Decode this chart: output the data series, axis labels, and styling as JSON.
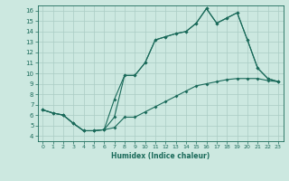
{
  "xlabel": "Humidex (Indice chaleur)",
  "bg_color": "#cce8e0",
  "grid_color": "#aaccc4",
  "line_color": "#1a6a5a",
  "xlim": [
    -0.5,
    23.5
  ],
  "ylim": [
    3.5,
    16.5
  ],
  "xticks": [
    0,
    1,
    2,
    3,
    4,
    5,
    6,
    7,
    8,
    9,
    10,
    11,
    12,
    13,
    14,
    15,
    16,
    17,
    18,
    19,
    20,
    21,
    22,
    23
  ],
  "yticks": [
    4,
    5,
    6,
    7,
    8,
    9,
    10,
    11,
    12,
    13,
    14,
    15,
    16
  ],
  "line1_x": [
    0,
    1,
    2,
    3,
    4,
    5,
    6,
    7,
    8,
    9,
    10,
    11,
    12,
    13,
    14,
    15,
    16,
    17,
    18,
    19,
    20,
    21,
    22,
    23
  ],
  "line1_y": [
    6.5,
    6.2,
    6.0,
    5.2,
    4.5,
    4.5,
    4.6,
    5.8,
    9.8,
    9.8,
    11.0,
    13.2,
    13.5,
    13.8,
    14.0,
    14.8,
    16.2,
    14.8,
    15.3,
    15.8,
    13.2,
    10.5,
    9.5,
    9.2
  ],
  "line2_x": [
    0,
    1,
    2,
    3,
    4,
    5,
    6,
    7,
    8,
    9,
    10,
    11,
    12,
    13,
    14,
    15,
    16,
    17,
    18,
    19,
    20,
    21,
    22,
    23
  ],
  "line2_y": [
    6.5,
    6.2,
    6.0,
    5.2,
    4.5,
    4.5,
    4.6,
    7.5,
    9.8,
    9.8,
    11.0,
    13.2,
    13.5,
    13.8,
    14.0,
    14.8,
    16.2,
    14.8,
    15.3,
    15.8,
    13.2,
    10.5,
    9.5,
    9.2
  ],
  "line3_x": [
    0,
    1,
    2,
    3,
    4,
    5,
    6,
    7,
    8,
    9,
    10,
    11,
    12,
    13,
    14,
    15,
    16,
    17,
    18,
    19,
    20,
    21,
    22,
    23
  ],
  "line3_y": [
    6.5,
    6.2,
    6.0,
    5.2,
    4.5,
    4.5,
    4.6,
    4.8,
    5.8,
    5.8,
    6.3,
    6.8,
    7.3,
    7.8,
    8.3,
    8.8,
    9.0,
    9.2,
    9.4,
    9.5,
    9.5,
    9.5,
    9.3,
    9.2
  ]
}
